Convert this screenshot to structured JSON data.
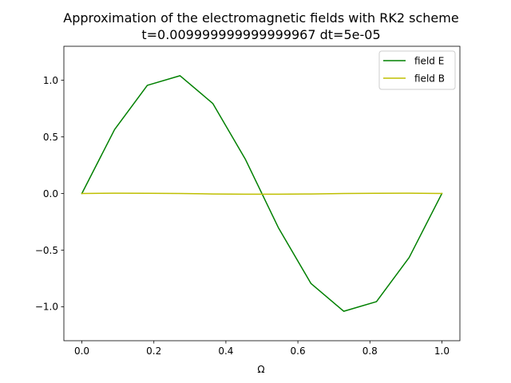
{
  "chart_data": {
    "type": "line",
    "title": "Approximation of the electromagnetic fields with RK2 scheme",
    "subtitle": "t=0.009999999999999967 dt=5e-05",
    "xlabel": "Ω",
    "ylabel": "",
    "xlim": [
      -0.05,
      1.05
    ],
    "ylim": [
      -1.3,
      1.3
    ],
    "xticks": [
      0.0,
      0.2,
      0.4,
      0.6,
      0.8,
      1.0
    ],
    "xtick_labels": [
      "0.0",
      "0.2",
      "0.4",
      "0.6",
      "0.8",
      "1.0"
    ],
    "yticks": [
      1.0,
      0.5,
      0.0,
      -0.5,
      -1.0
    ],
    "ytick_labels": [
      "1.0",
      "0.5",
      "0.0",
      "−0.5",
      "−1.0"
    ],
    "grid": false,
    "legend_position": "top-right",
    "series": [
      {
        "name": "field E",
        "color": "#008000",
        "x": [
          0.0,
          0.0909,
          0.1818,
          0.2727,
          0.3636,
          0.4545,
          0.5455,
          0.6364,
          0.7273,
          0.8182,
          0.9091,
          1.0
        ],
        "y": [
          0.0,
          0.565,
          0.955,
          1.04,
          0.795,
          0.3,
          -0.3,
          -0.795,
          -1.04,
          -0.955,
          -0.565,
          0.0
        ]
      },
      {
        "name": "field B",
        "color": "#bfbf00",
        "x": [
          0.0,
          0.0909,
          0.1818,
          0.2727,
          0.3636,
          0.4545,
          0.5455,
          0.6364,
          0.7273,
          0.8182,
          0.9091,
          1.0
        ],
        "y": [
          0.0,
          0.003,
          0.002,
          0.0,
          -0.004,
          -0.006,
          -0.006,
          -0.004,
          0.0,
          0.002,
          0.003,
          0.0
        ]
      }
    ]
  }
}
